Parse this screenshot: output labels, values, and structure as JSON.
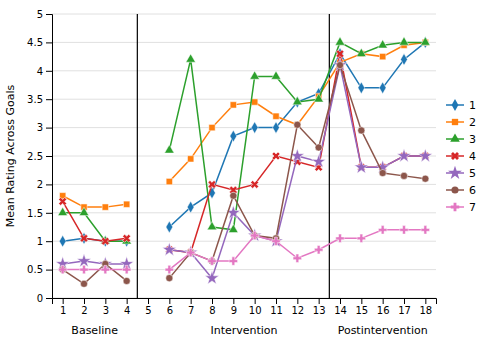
{
  "chart_data": {
    "type": "line",
    "y_label": "Mean Rating Across Goals",
    "x": [
      1,
      2,
      3,
      4,
      5,
      6,
      7,
      8,
      9,
      10,
      11,
      12,
      13,
      14,
      15,
      16,
      17,
      18
    ],
    "xlim": [
      0.5,
      18.5
    ],
    "xticks": [
      1,
      2,
      3,
      4,
      5,
      6,
      7,
      8,
      9,
      10,
      11,
      12,
      13,
      14,
      15,
      16,
      17,
      18
    ],
    "ylim": [
      0,
      5
    ],
    "yticks": [
      0,
      0.5,
      1,
      1.5,
      2,
      2.5,
      3,
      3.5,
      4,
      4.5,
      5
    ],
    "grid": true,
    "legend": "right",
    "phase_lines": [
      4.5,
      13.5
    ],
    "annotations": [
      {
        "text": "Baseline",
        "x": 2.5
      },
      {
        "text": "Intervention",
        "x": 9.5
      },
      {
        "text": "Postintervention",
        "x": 16.0
      }
    ],
    "series": [
      {
        "name": "1",
        "marker": "diamond",
        "values": [
          1.0,
          1.05,
          1.0,
          1.0,
          null,
          1.25,
          1.6,
          1.85,
          2.85,
          3.0,
          3.0,
          3.45,
          3.6,
          4.3,
          3.7,
          3.7,
          4.2,
          4.5
        ]
      },
      {
        "name": "2",
        "marker": "square",
        "values": [
          1.8,
          1.6,
          1.6,
          1.65,
          null,
          2.05,
          2.45,
          3.0,
          3.4,
          3.45,
          3.2,
          3.05,
          3.55,
          4.15,
          4.3,
          4.25,
          4.45,
          4.5
        ]
      },
      {
        "name": "3",
        "marker": "triangle",
        "values": [
          1.5,
          1.5,
          1.0,
          1.0,
          null,
          2.6,
          4.2,
          1.25,
          1.2,
          3.9,
          3.9,
          3.45,
          3.5,
          4.5,
          4.3,
          4.45,
          4.5,
          4.5
        ]
      },
      {
        "name": "4",
        "marker": "x",
        "values": [
          1.7,
          1.05,
          1.0,
          1.05,
          null,
          0.85,
          0.8,
          2.0,
          1.9,
          2.0,
          2.5,
          2.4,
          2.3,
          4.3,
          2.3,
          2.3,
          2.5,
          2.5
        ]
      },
      {
        "name": "5",
        "marker": "star",
        "values": [
          0.6,
          0.65,
          0.6,
          0.6,
          null,
          0.85,
          0.8,
          0.35,
          1.5,
          1.1,
          1.0,
          2.5,
          2.4,
          4.1,
          2.3,
          2.3,
          2.5,
          2.5
        ]
      },
      {
        "name": "6",
        "marker": "circle",
        "values": [
          0.5,
          0.25,
          0.6,
          0.3,
          null,
          0.35,
          0.8,
          0.65,
          1.8,
          1.1,
          1.05,
          3.05,
          2.65,
          4.1,
          2.95,
          2.2,
          2.15,
          2.1
        ]
      },
      {
        "name": "7",
        "marker": "plus",
        "values": [
          0.5,
          0.5,
          0.5,
          0.5,
          null,
          0.5,
          0.8,
          0.65,
          0.65,
          1.1,
          1.0,
          0.7,
          0.85,
          1.05,
          1.05,
          1.2,
          1.2,
          1.2
        ]
      }
    ]
  }
}
